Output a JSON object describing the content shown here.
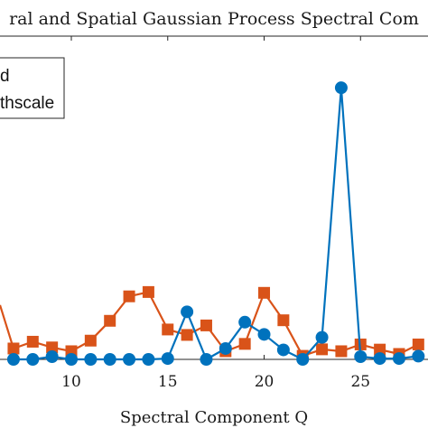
{
  "chart_data": {
    "type": "line",
    "title": "ral and Spatial Gaussian Process Spectral Com",
    "xlabel": "Spectral Component Q",
    "ylabel": "",
    "xticks": [
      10,
      15,
      20,
      25
    ],
    "xlim": [
      6.3,
      28.5
    ],
    "ylim": [
      -0.05,
      1.0
    ],
    "legend": {
      "position": "top-left",
      "entries": [
        "d",
        "thscale"
      ]
    },
    "series": [
      {
        "name": "d",
        "color": "#0072BD",
        "marker": "circle",
        "x": [
          7,
          8,
          9,
          10,
          11,
          12,
          13,
          14,
          15,
          16,
          17,
          18,
          19,
          20,
          21,
          22,
          23,
          24,
          25,
          26,
          27,
          28
        ],
        "y": [
          0,
          0,
          0.01,
          0,
          0,
          0,
          0,
          0,
          0.003,
          0.175,
          0,
          0.04,
          0.137,
          0.092,
          0.035,
          0,
          0.081,
          1.0,
          0.01,
          0.003,
          0.003,
          0.012
        ]
      },
      {
        "name": "thscale",
        "color": "#D95319",
        "marker": "square",
        "x": [
          7,
          8,
          9,
          10,
          11,
          12,
          13,
          14,
          15,
          16,
          17,
          18,
          19,
          20,
          21,
          22,
          23,
          24,
          25,
          26,
          27,
          28
        ],
        "y": [
          0.04,
          0.065,
          0.044,
          0.03,
          0.069,
          0.142,
          0.232,
          0.248,
          0.11,
          0.09,
          0.125,
          0.03,
          0.057,
          0.245,
          0.144,
          0.013,
          0.037,
          0.03,
          0.055,
          0.036,
          0.02,
          0.055
        ]
      }
    ],
    "offscreen_fragments": [
      {
        "series": "thscale",
        "x": [
          6.3,
          7
        ],
        "y": [
          0.2,
          0.04
        ]
      }
    ]
  }
}
